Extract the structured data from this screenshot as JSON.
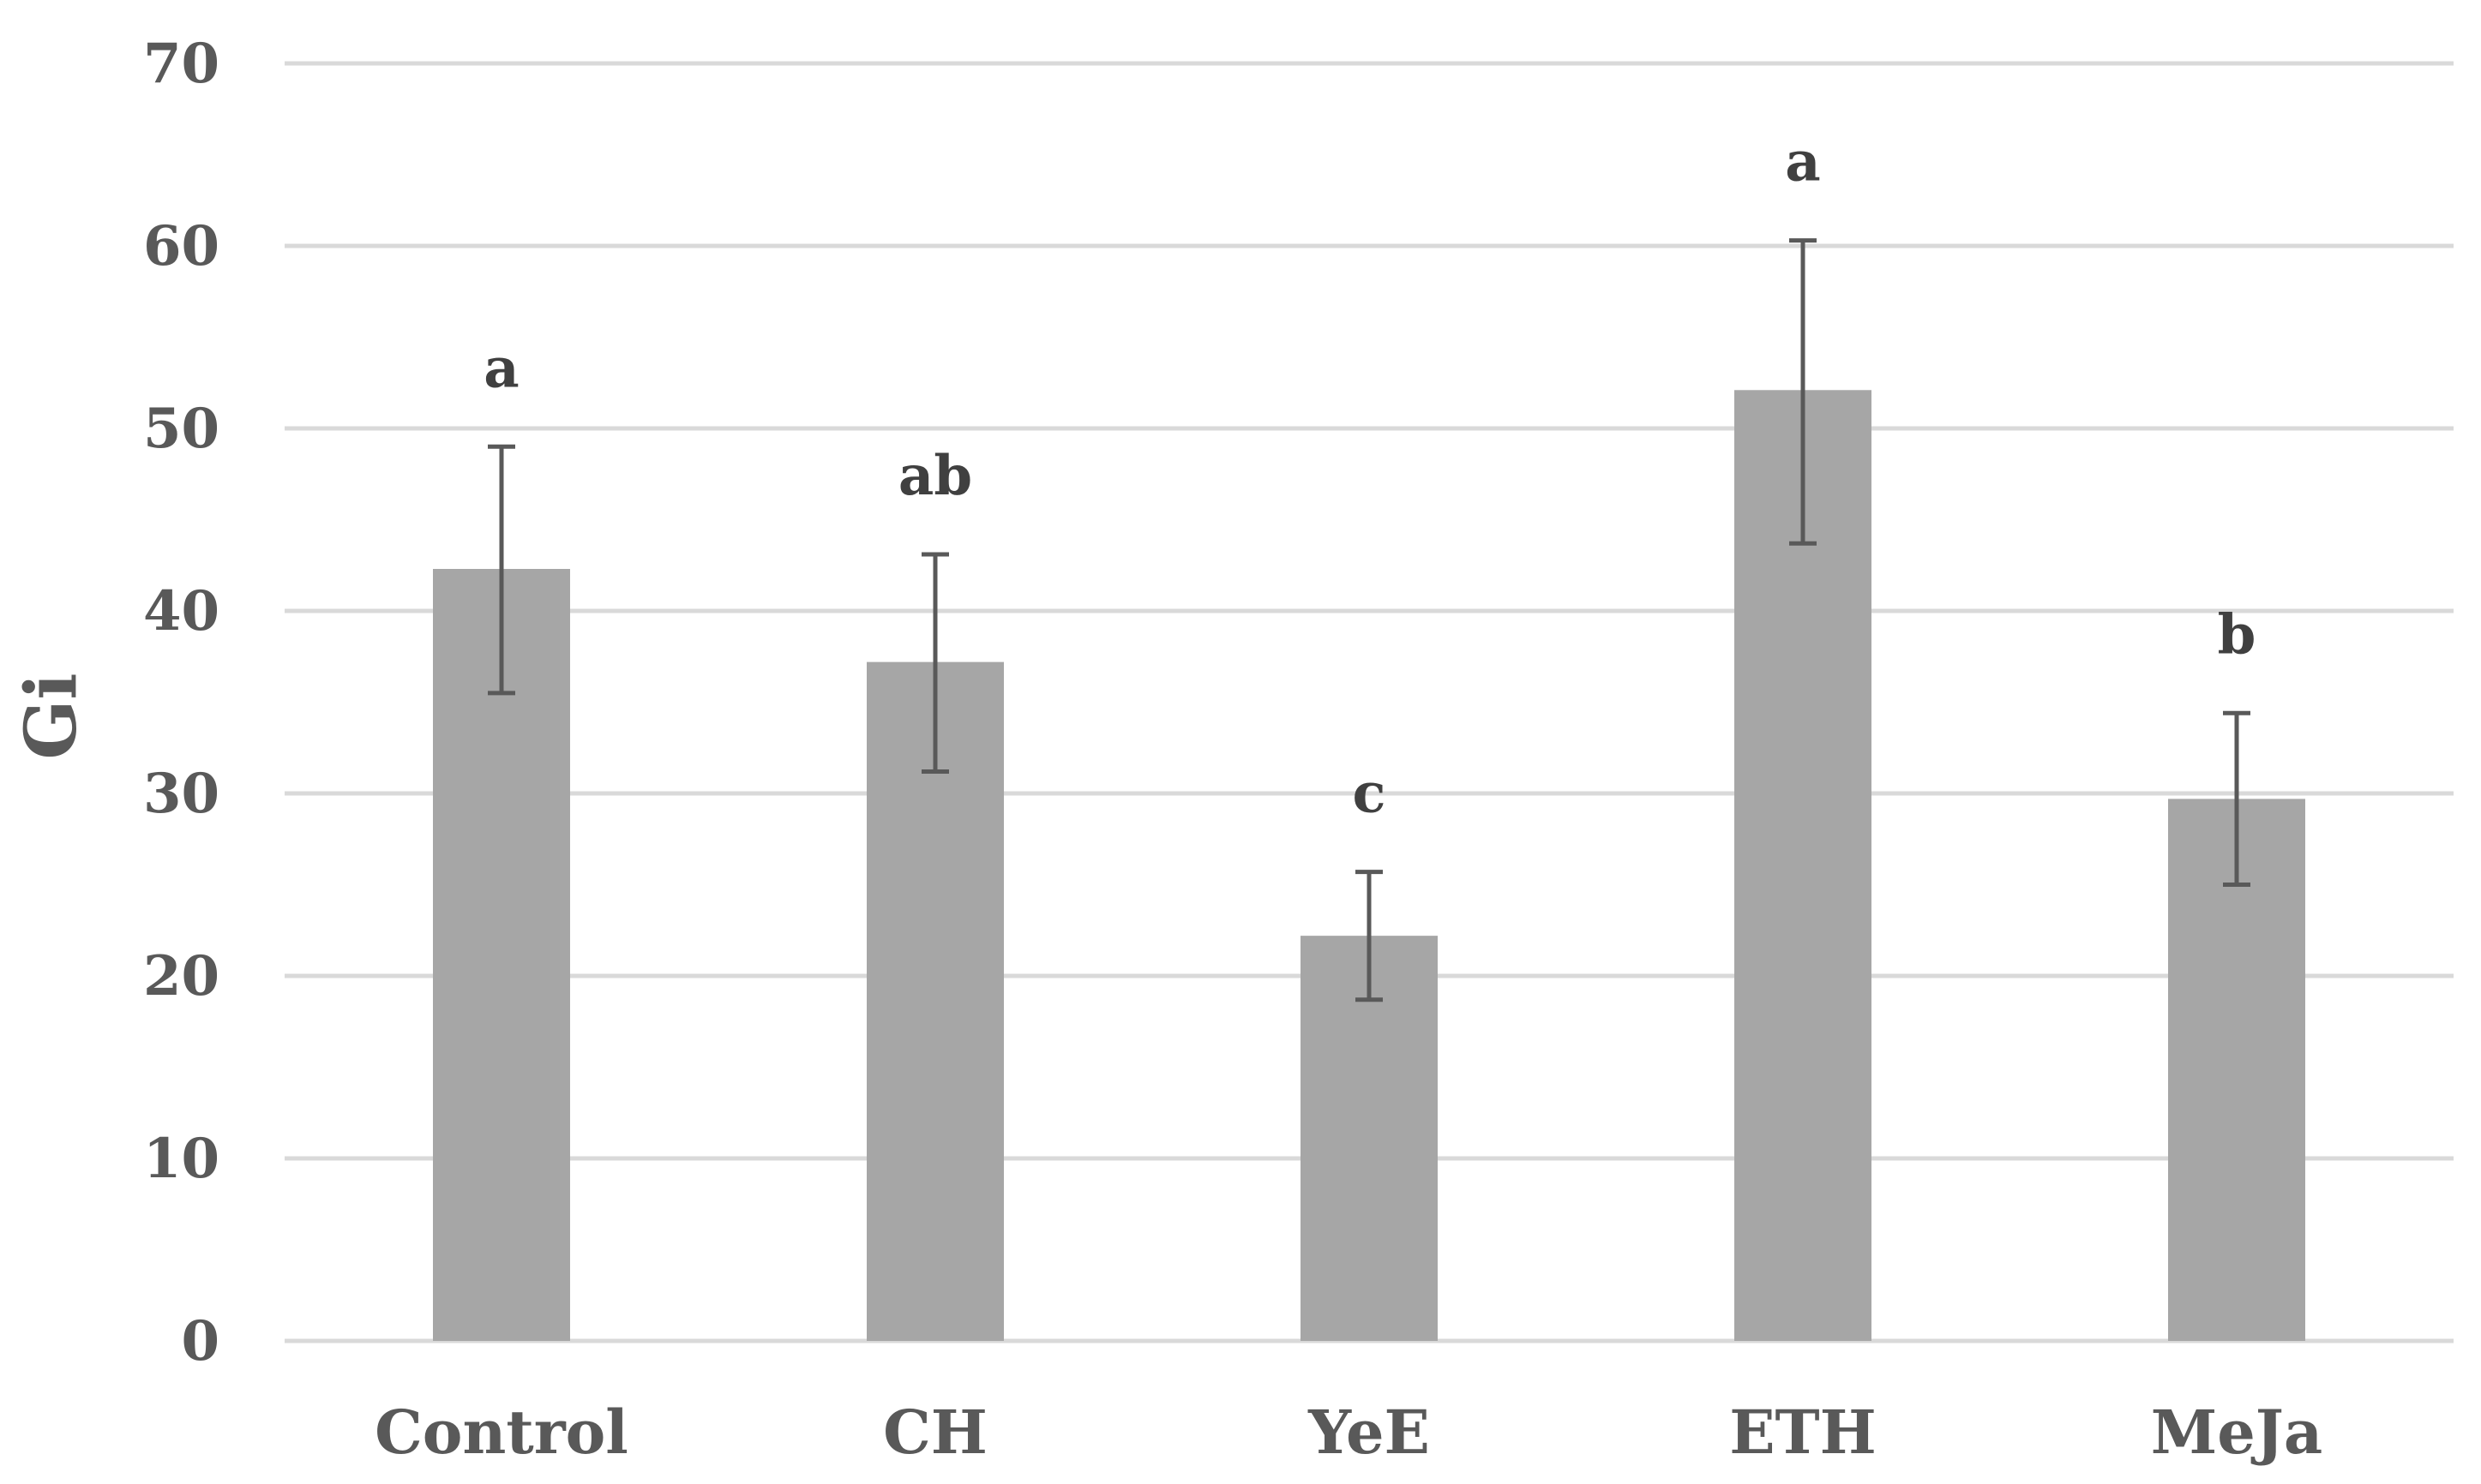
{
  "chart_data": {
    "type": "bar",
    "title": "",
    "xlabel": "",
    "ylabel": "Gi",
    "ylim": [
      0,
      70
    ],
    "yticks": [
      0,
      10,
      20,
      30,
      40,
      50,
      60,
      70
    ],
    "ytick_labels": [
      "0",
      "10",
      "20",
      "30",
      "40",
      "50",
      "60",
      "70"
    ],
    "grid": true,
    "legend": "none",
    "categories": [
      "Control",
      "CH",
      "YeE",
      "ETH",
      "MeJa"
    ],
    "values": [
      42.3,
      37.2,
      22.2,
      52.1,
      29.7
    ],
    "error_low": [
      35.5,
      31.2,
      18.7,
      43.7,
      25.0
    ],
    "error_high": [
      49.0,
      43.1,
      25.7,
      60.3,
      34.4
    ],
    "annotations": [
      "a",
      "ab",
      "c",
      "a",
      "b"
    ],
    "colors": {
      "bar": "#a6a6a6",
      "error": "#595959",
      "grid": "#d9d9d9",
      "text": "#595959",
      "annotation": "#404040"
    }
  }
}
